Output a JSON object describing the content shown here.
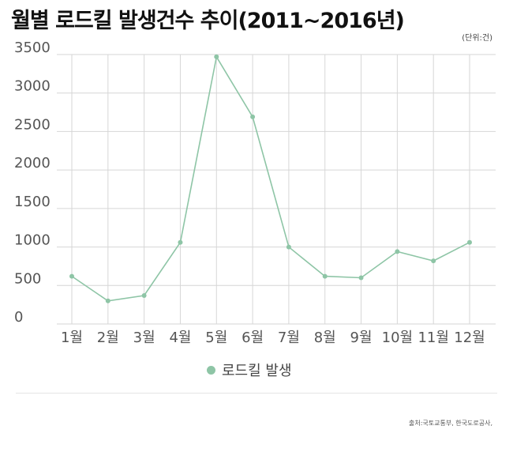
{
  "title": "월별 로드킬 발생건수 추이(2011~2016년)",
  "unit_note": "(단위:건)",
  "source_note": "출처:국토교통부, 한국도로공사,",
  "colors": {
    "series": "#8ec5a6",
    "grid": "#d6d6d6",
    "text": "#555555"
  },
  "chart_data": {
    "type": "line",
    "categories": [
      "1월",
      "2월",
      "3월",
      "4월",
      "5월",
      "6월",
      "7월",
      "8월",
      "9월",
      "10월",
      "11월",
      "12월"
    ],
    "series": [
      {
        "name": "로드킬 발생",
        "values": [
          620,
          300,
          370,
          1060,
          3470,
          2690,
          1000,
          620,
          600,
          940,
          820,
          1060
        ]
      }
    ],
    "yticks": [
      0,
      500,
      1000,
      1500,
      2000,
      2500,
      3000,
      3500
    ],
    "ylim": [
      0,
      3500
    ],
    "grid": true,
    "legend": "bottom-center"
  }
}
